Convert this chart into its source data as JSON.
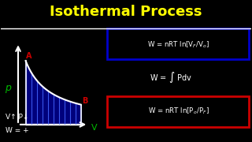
{
  "title": "Isothermal Process",
  "title_color": "#FFFF00",
  "bg_color": "#000000",
  "separator_color": "#FFFFFF",
  "eq1_box_color": "#0000CC",
  "eq3_box_color": "#CC0000",
  "label_p": "p",
  "label_v": "V",
  "label_a": "A",
  "label_b": "B",
  "note1": "V↑ P↓",
  "note2": "W = +",
  "axis_color": "#FFFFFF",
  "shade_color": "#00008B",
  "hatch_color": "#4466FF",
  "point_color": "#CC0000",
  "green_color": "#00BB00",
  "white_color": "#FFFFFF"
}
